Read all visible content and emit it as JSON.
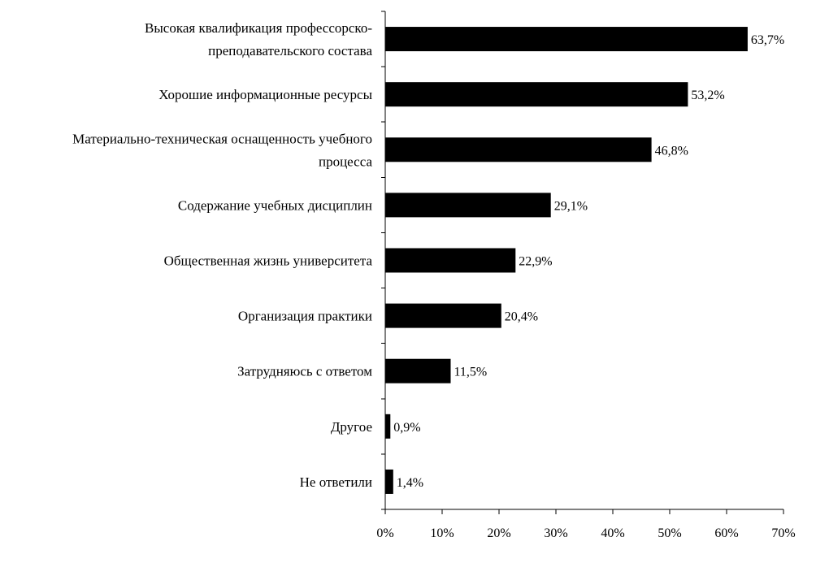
{
  "chart_data": {
    "type": "bar",
    "orientation": "horizontal",
    "categories": [
      [
        "Высокая квалификация профессорско-",
        "преподавательского состава"
      ],
      [
        "Хорошие информационные ресурсы"
      ],
      [
        "Материально-техническая оснащенность учебного",
        "процесса"
      ],
      [
        "Содержание учебных дисциплин"
      ],
      [
        "Общественная жизнь университета"
      ],
      [
        "Организация практики"
      ],
      [
        "Затрудняюсь с ответом"
      ],
      [
        "Другое"
      ],
      [
        "Не ответили"
      ]
    ],
    "values": [
      63.7,
      53.2,
      46.8,
      29.1,
      22.9,
      20.4,
      11.5,
      0.9,
      1.4
    ],
    "value_labels": [
      "63,7%",
      "53,2%",
      "46,8%",
      "29,1%",
      "22,9%",
      "20,4%",
      "11,5%",
      "0,9%",
      "1,4%"
    ],
    "xlim": [
      0,
      70
    ],
    "x_ticks": [
      0,
      10,
      20,
      30,
      40,
      50,
      60,
      70
    ],
    "x_tick_labels": [
      "0%",
      "10%",
      "20%",
      "30%",
      "40%",
      "50%",
      "60%",
      "70%"
    ],
    "bar_color": "#000000",
    "grid": false,
    "legend": "none"
  }
}
